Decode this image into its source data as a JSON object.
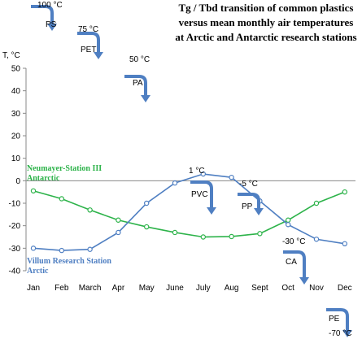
{
  "chart_data": {
    "type": "line",
    "title_lines": [
      "Tg / Tbd transition of common plastics",
      "versus mean monthly air temperatures",
      "at Arctic and Antarctic research stations"
    ],
    "ylabel": "T, °C",
    "ylim": [
      -40,
      50
    ],
    "yticks": [
      "50",
      "40",
      "30",
      "20",
      "10",
      "0",
      "-10",
      "-20",
      "-30",
      "-40"
    ],
    "categories": [
      "Jan",
      "Feb",
      "March",
      "Apr",
      "May",
      "June",
      "July",
      "Aug",
      "Sept",
      "Oct",
      "Nov",
      "Dec"
    ],
    "grid": false,
    "series": [
      {
        "name_lines": [
          "Neumayer-Station III",
          "Antarctic"
        ],
        "color": "#2db34a",
        "values": [
          -4.5,
          -8,
          -13,
          -17.5,
          -20.5,
          -23,
          -25,
          -24.8,
          -23.5,
          -17.5,
          -10,
          -5
        ]
      },
      {
        "name_lines": [
          "Villum Research Station",
          "Arctic"
        ],
        "color": "#4f7fc2",
        "values": [
          -30,
          -31,
          -30.5,
          -23,
          -10,
          -1,
          3,
          1.5,
          -9,
          -19.5,
          -26,
          -28
        ]
      }
    ],
    "plastics": [
      {
        "name": "PS",
        "temp_label": "100 °C",
        "temp": 100
      },
      {
        "name": "PET",
        "temp_label": "75 °C",
        "temp": 75
      },
      {
        "name": "PA",
        "temp_label": "50 °C",
        "temp": 50
      },
      {
        "name": "PVC",
        "temp_label": "1 °C",
        "temp": 1
      },
      {
        "name": "PP",
        "temp_label": "-5 °C",
        "temp": -5
      },
      {
        "name": "CA",
        "temp_label": "-30 °C",
        "temp": -30
      },
      {
        "name": "PE",
        "temp_label": "-70 °C",
        "temp": -70
      }
    ],
    "arrow_color": "#4f7fc2"
  }
}
